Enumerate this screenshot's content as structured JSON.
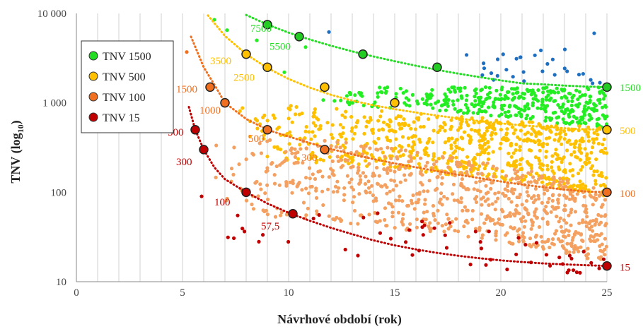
{
  "chart_data": {
    "type": "scatter",
    "xlabel": "Návrhové období (rok)",
    "ylabel_main": "TNV  (log",
    "ylabel_sub": "10",
    "ylabel_end": ")",
    "xlim": [
      0,
      25
    ],
    "ylim": [
      10,
      10000
    ],
    "y_scale": "log",
    "x_ticks": [
      "0",
      "5",
      "10",
      "15",
      "20",
      "25"
    ],
    "y_ticks": [
      {
        "value": 10,
        "label": "10"
      },
      {
        "value": 100,
        "label": "100"
      },
      {
        "value": 1000,
        "label": "1 000"
      },
      {
        "value": 10000,
        "label": "10 000"
      }
    ],
    "grid": "vertical lines every 1 year",
    "legend_position": "top-left",
    "legend": [
      {
        "label": "TNV 1500",
        "color": "#22dd22"
      },
      {
        "label": "TNV 500",
        "color": "#ffc000"
      },
      {
        "label": "TNV 100",
        "color": "#f07020"
      },
      {
        "label": "TNV 15",
        "color": "#c00000"
      }
    ],
    "curves": [
      {
        "key": "TNV 1500",
        "color": "#22dd22",
        "marker_fill": "#22cc22",
        "curve_x": [
          8,
          9,
          10,
          11,
          12,
          13,
          14,
          15,
          16,
          17,
          18,
          19,
          20,
          21,
          22,
          23,
          24,
          25
        ],
        "curve_y": [
          9600,
          7500,
          6100,
          5100,
          4350,
          3760,
          3300,
          2920,
          2600,
          2340,
          2120,
          1940,
          1780,
          1650,
          1610,
          1560,
          1520,
          1500
        ],
        "markers": [
          {
            "x": 9,
            "y": 7500
          },
          {
            "x": 10.5,
            "y": 5500
          },
          {
            "x": 13.5,
            "y": 3500
          },
          {
            "x": 17,
            "y": 2500
          },
          {
            "x": 25,
            "y": 1500
          }
        ],
        "labels": [
          {
            "text": "7500",
            "x": 8.2,
            "y": 6800
          },
          {
            "text": "5500",
            "x": 9.1,
            "y": 4300
          },
          {
            "text": "1500",
            "x": 25.6,
            "y": 1480
          }
        ]
      },
      {
        "key": "TNV 500",
        "color": "#ffc000",
        "marker_fill": "#ffc000",
        "curve_x": [
          6.2,
          7,
          8,
          9,
          10,
          11,
          12,
          13,
          14,
          15,
          16,
          17,
          18,
          19,
          20,
          21,
          22,
          23,
          24,
          25
        ],
        "curve_y": [
          9500,
          5600,
          3500,
          2450,
          1850,
          1480,
          1230,
          1060,
          940,
          850,
          780,
          720,
          670,
          625,
          590,
          560,
          540,
          520,
          505,
          500
        ],
        "markers": [
          {
            "x": 8,
            "y": 3500
          },
          {
            "x": 9,
            "y": 2500
          },
          {
            "x": 11.7,
            "y": 1500
          },
          {
            "x": 15,
            "y": 1000
          },
          {
            "x": 25,
            "y": 500
          }
        ],
        "labels": [
          {
            "text": "3500",
            "x": 6.3,
            "y": 2950
          },
          {
            "text": "2500",
            "x": 7.4,
            "y": 1930
          },
          {
            "text": "500",
            "x": 25.6,
            "y": 490
          }
        ]
      },
      {
        "key": "TNV 100",
        "color": "#f07020",
        "marker_fill": "#f07020",
        "curve_x": [
          5.4,
          6,
          6.5,
          7,
          8,
          9,
          10,
          11,
          12,
          13,
          14,
          15,
          16,
          17,
          18,
          19,
          20,
          21,
          22,
          23,
          24,
          25
        ],
        "curve_y": [
          5500,
          2500,
          1600,
          1000,
          660,
          500,
          420,
          355,
          305,
          265,
          235,
          210,
          190,
          172,
          157,
          144,
          132,
          122,
          114,
          107,
          102,
          100
        ],
        "markers": [
          {
            "x": 6.3,
            "y": 1500
          },
          {
            "x": 7,
            "y": 1000
          },
          {
            "x": 9,
            "y": 500
          },
          {
            "x": 11.7,
            "y": 300
          },
          {
            "x": 25,
            "y": 100
          }
        ],
        "labels": [
          {
            "text": "1500",
            "x": 4.7,
            "y": 1430
          },
          {
            "text": "1000",
            "x": 5.8,
            "y": 830
          },
          {
            "text": "500",
            "x": 8.1,
            "y": 400
          },
          {
            "text": "300",
            "x": 10.6,
            "y": 245
          },
          {
            "text": "100",
            "x": 25.6,
            "y": 97
          }
        ]
      },
      {
        "key": "TNV 15",
        "color": "#c00000",
        "marker_fill": "#c00000",
        "curve_x": [
          5.3,
          5.6,
          6,
          6.5,
          7,
          8,
          9,
          10,
          11,
          12,
          13,
          14,
          15,
          16,
          17,
          18,
          19,
          20,
          21,
          22,
          23,
          24,
          25
        ],
        "curve_y": [
          900,
          500,
          300,
          190,
          140,
          100,
          75,
          59,
          48,
          40,
          34,
          29,
          25.5,
          23,
          21,
          19.5,
          18.3,
          17.3,
          16.6,
          16,
          15.6,
          15.3,
          15
        ],
        "markers": [
          {
            "x": 5.6,
            "y": 500
          },
          {
            "x": 6,
            "y": 300
          },
          {
            "x": 8,
            "y": 100
          },
          {
            "x": 10.2,
            "y": 57.5
          },
          {
            "x": 25,
            "y": 15
          }
        ],
        "labels": [
          {
            "text": "500",
            "x": 4.3,
            "y": 470
          },
          {
            "text": "300",
            "x": 4.7,
            "y": 220
          },
          {
            "text": "100",
            "x": 6.5,
            "y": 78
          },
          {
            "text": "57,5",
            "x": 8.7,
            "y": 42
          },
          {
            "text": "15",
            "x": 25.6,
            "y": 14.5
          }
        ]
      }
    ],
    "scatter_clouds": [
      {
        "name": "TNV 1500 points",
        "color": "#22ee22",
        "x_range": [
          11.5,
          25
        ],
        "y_lower": {
          "a": 1000,
          "b": 500
        },
        "y_upper": {
          "a": 1500,
          "b": 1500
        },
        "count": 380,
        "seed": 11
      },
      {
        "name": "TNV 500 points",
        "color": "#ffc000",
        "x_range": [
          7.5,
          25
        ],
        "y_lower": {
          "a": 250,
          "b": 90
        },
        "y_upper": {
          "a": 1000,
          "b": 520
        },
        "count": 720,
        "seed": 23
      },
      {
        "name": "TNV 100 points",
        "color": "#f4a060",
        "x_range": [
          6,
          25
        ],
        "y_lower": {
          "a": 60,
          "b": 16
        },
        "y_upper": {
          "a": 500,
          "b": 100
        },
        "count": 780,
        "seed": 37
      },
      {
        "name": "TNV 15 points",
        "color": "#c00000",
        "x_range": [
          5.8,
          25
        ],
        "y_lower": {
          "a": 25,
          "b": 10
        },
        "y_upper": {
          "a": 90,
          "b": 18
        },
        "count": 55,
        "seed": 41
      },
      {
        "name": "outlier points",
        "color": "#1f6fc0",
        "x_range": [
          18,
          25
        ],
        "y_lower": {
          "a": 1600,
          "b": 1600
        },
        "y_upper": {
          "a": 4500,
          "b": 4500
        },
        "count": 30,
        "seed": 53
      }
    ],
    "extra_points": [
      {
        "x": 6.5,
        "y": 8500,
        "color": "#22ee22"
      },
      {
        "x": 7.1,
        "y": 6500,
        "color": "#22ee22"
      },
      {
        "x": 8.5,
        "y": 5000,
        "color": "#22ee22"
      },
      {
        "x": 10.8,
        "y": 4200,
        "color": "#22ee22"
      },
      {
        "x": 9.8,
        "y": 2200,
        "color": "#22ee22"
      },
      {
        "x": 11.9,
        "y": 6200,
        "color": "#1f6fc0"
      },
      {
        "x": 24.4,
        "y": 6000,
        "color": "#1f6fc0"
      },
      {
        "x": 5.2,
        "y": 3700,
        "color": "#f07020"
      },
      {
        "x": 5.9,
        "y": 90,
        "color": "#c00000"
      },
      {
        "x": 7.6,
        "y": 55,
        "color": "#c00000"
      },
      {
        "x": 8.6,
        "y": 28,
        "color": "#c00000"
      }
    ]
  }
}
